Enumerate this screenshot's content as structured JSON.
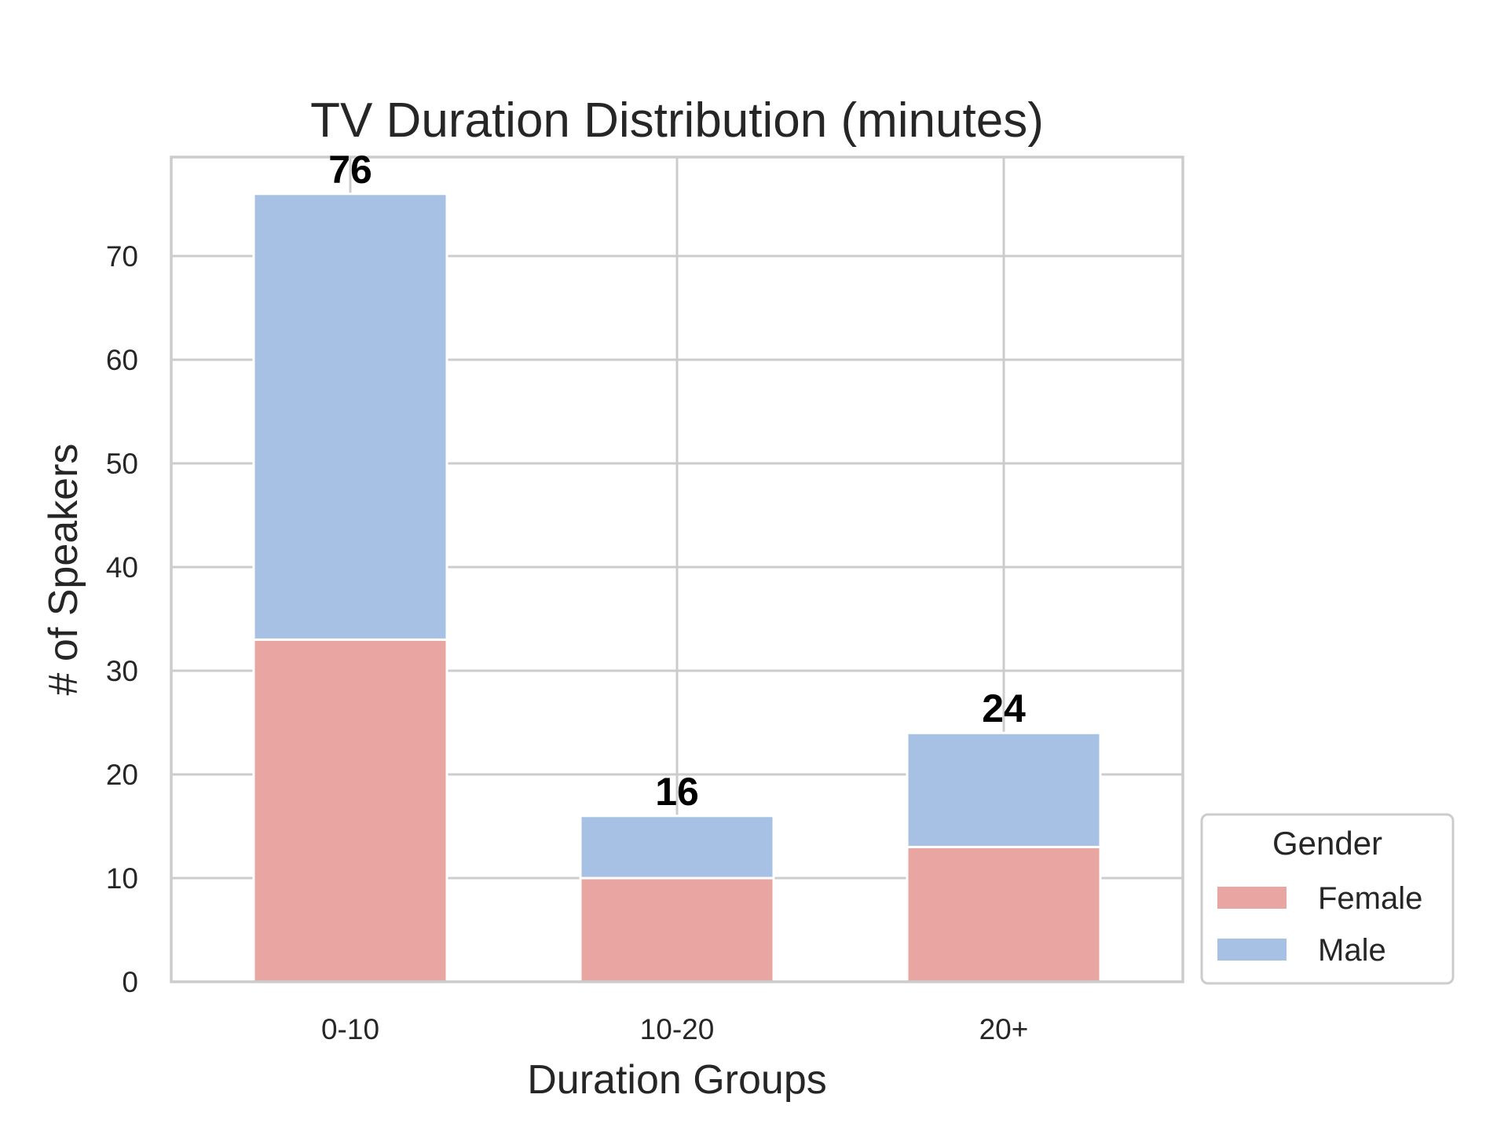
{
  "chart_data": {
    "type": "bar",
    "stacked": true,
    "title": "TV Duration Distribution (minutes)",
    "xlabel": "Duration Groups",
    "ylabel": "# of Speakers",
    "categories": [
      "0-10",
      "10-20",
      "20+"
    ],
    "series": [
      {
        "name": "Female",
        "values": [
          33,
          10,
          13
        ],
        "color": "#e8a5a2"
      },
      {
        "name": "Male",
        "values": [
          43,
          6,
          11
        ],
        "color": "#a6c1e4"
      }
    ],
    "totals": [
      76,
      16,
      24
    ],
    "ylim": [
      0,
      80
    ],
    "yticks": [
      0,
      10,
      20,
      30,
      40,
      50,
      60,
      70
    ],
    "grid": true,
    "legend": {
      "title": "Gender",
      "placement": "outside-lower-right"
    }
  }
}
